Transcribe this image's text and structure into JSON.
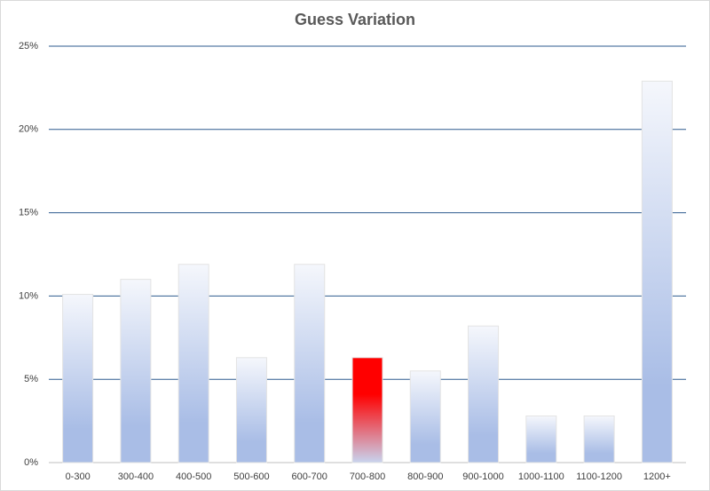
{
  "chart_data": {
    "type": "bar",
    "title": "Guess Variation",
    "categories": [
      "0-300",
      "300-400",
      "400-500",
      "500-600",
      "600-700",
      "700-800",
      "800-900",
      "900-1000",
      "1000-1100",
      "1100-1200",
      "1200+"
    ],
    "values": [
      10.1,
      11.0,
      11.9,
      6.3,
      11.9,
      6.3,
      5.5,
      8.2,
      2.8,
      2.8,
      22.9
    ],
    "colors": [
      "#a9bde6",
      "#a9bde6",
      "#a9bde6",
      "#a9bde6",
      "#a9bde6",
      "#ff0000",
      "#a9bde6",
      "#a9bde6",
      "#a9bde6",
      "#a9bde6",
      "#a9bde6"
    ],
    "highlight_color": "#ff0000",
    "ylim": [
      0,
      25
    ],
    "yticks": [
      {
        "value": 0,
        "label": "0%"
      },
      {
        "value": 5,
        "label": "5%"
      },
      {
        "value": 10,
        "label": "10%"
      },
      {
        "value": 15,
        "label": "15%"
      },
      {
        "value": 20,
        "label": "20%"
      },
      {
        "value": 25,
        "label": "25%"
      }
    ],
    "grid": true,
    "grid_color": "#2e5b8f"
  }
}
